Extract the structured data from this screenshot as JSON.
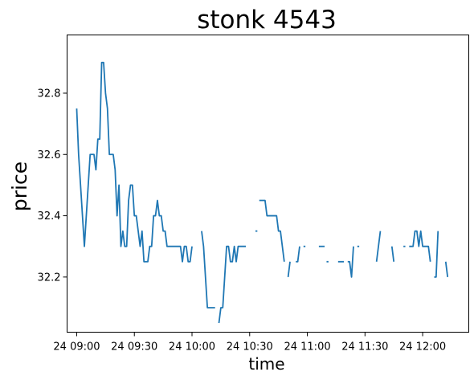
{
  "chart_data": {
    "type": "line",
    "title": "stonk 4543",
    "xlabel": "time",
    "ylabel": "price",
    "x_unit": "minutes after 24 09:00",
    "xlim": [
      -5,
      204
    ],
    "ylim": [
      32.02,
      32.99
    ],
    "grid": false,
    "legend": "none",
    "line_color": "#1f77b4",
    "xticks": [
      {
        "value": 0,
        "label": "24 09:00"
      },
      {
        "value": 30,
        "label": "24 09:30"
      },
      {
        "value": 60,
        "label": "24 10:00"
      },
      {
        "value": 90,
        "label": "24 10:30"
      },
      {
        "value": 120,
        "label": "24 11:00"
      },
      {
        "value": 150,
        "label": "24 11:30"
      },
      {
        "value": 180,
        "label": "24 12:00"
      }
    ],
    "yticks": [
      {
        "value": 32.2,
        "label": "32.2"
      },
      {
        "value": 32.4,
        "label": "32.4"
      },
      {
        "value": 32.6,
        "label": "32.6"
      },
      {
        "value": 32.8,
        "label": "32.8"
      }
    ],
    "series": [
      {
        "segments": [
          [
            [
              0,
              32.75
            ],
            [
              1,
              32.6
            ],
            [
              2,
              32.5
            ],
            [
              3,
              32.4
            ],
            [
              4,
              32.3
            ],
            [
              5,
              32.4
            ],
            [
              6,
              32.5
            ],
            [
              7,
              32.6
            ],
            [
              8,
              32.6
            ],
            [
              9,
              32.6
            ],
            [
              10,
              32.55
            ],
            [
              11,
              32.65
            ],
            [
              12,
              32.65
            ],
            [
              13,
              32.9
            ],
            [
              14,
              32.9
            ],
            [
              15,
              32.8
            ],
            [
              16,
              32.75
            ],
            [
              17,
              32.6
            ],
            [
              18,
              32.6
            ],
            [
              19,
              32.6
            ],
            [
              20,
              32.55
            ],
            [
              21,
              32.4
            ],
            [
              22,
              32.5
            ],
            [
              23,
              32.3
            ],
            [
              24,
              32.35
            ],
            [
              25,
              32.3
            ],
            [
              26,
              32.3
            ],
            [
              27,
              32.45
            ],
            [
              28,
              32.5
            ],
            [
              29,
              32.5
            ],
            [
              30,
              32.4
            ],
            [
              31,
              32.4
            ],
            [
              32,
              32.35
            ],
            [
              33,
              32.3
            ],
            [
              34,
              32.35
            ],
            [
              35,
              32.25
            ],
            [
              36,
              32.25
            ],
            [
              37,
              32.25
            ],
            [
              38,
              32.3
            ],
            [
              39,
              32.3
            ],
            [
              40,
              32.4
            ],
            [
              41,
              32.4
            ],
            [
              42,
              32.45
            ],
            [
              43,
              32.4
            ],
            [
              44,
              32.4
            ],
            [
              45,
              32.35
            ],
            [
              46,
              32.35
            ],
            [
              47,
              32.3
            ],
            [
              48,
              32.3
            ],
            [
              49,
              32.3
            ],
            [
              50,
              32.3
            ],
            [
              51,
              32.3
            ],
            [
              52,
              32.3
            ],
            [
              53,
              32.3
            ],
            [
              54,
              32.3
            ],
            [
              55,
              32.25
            ],
            [
              56,
              32.3
            ],
            [
              57,
              32.3
            ],
            [
              58,
              32.25
            ],
            [
              59,
              32.25
            ],
            [
              60,
              32.3
            ]
          ],
          [
            [
              65,
              32.35
            ],
            [
              66,
              32.3
            ],
            [
              67,
              32.2
            ],
            [
              68,
              32.1
            ],
            [
              69,
              32.1
            ],
            [
              70,
              32.1
            ],
            [
              71,
              32.1
            ],
            [
              72,
              32.1
            ]
          ],
          [
            [
              74,
              32.05
            ],
            [
              75,
              32.1
            ],
            [
              76,
              32.1
            ],
            [
              77,
              32.2
            ],
            [
              78,
              32.3
            ],
            [
              79,
              32.3
            ],
            [
              80,
              32.25
            ],
            [
              81,
              32.25
            ],
            [
              82,
              32.3
            ],
            [
              83,
              32.25
            ],
            [
              84,
              32.3
            ],
            [
              85,
              32.3
            ],
            [
              86,
              32.3
            ],
            [
              87,
              32.3
            ],
            [
              88,
              32.3
            ]
          ],
          [
            [
              93,
              32.35
            ],
            [
              94,
              32.35
            ]
          ],
          [
            [
              95,
              32.45
            ],
            [
              96,
              32.45
            ],
            [
              97,
              32.45
            ],
            [
              98,
              32.45
            ],
            [
              99,
              32.4
            ],
            [
              100,
              32.4
            ],
            [
              101,
              32.4
            ],
            [
              102,
              32.4
            ],
            [
              103,
              32.4
            ],
            [
              104,
              32.4
            ],
            [
              105,
              32.35
            ],
            [
              106,
              32.35
            ],
            [
              107,
              32.3
            ],
            [
              108,
              32.25
            ]
          ],
          [
            [
              110,
              32.2
            ],
            [
              111,
              32.25
            ]
          ],
          [
            [
              114,
              32.25
            ],
            [
              115,
              32.25
            ],
            [
              116,
              32.3
            ]
          ],
          [
            [
              118,
              32.3
            ],
            [
              119,
              32.3
            ]
          ],
          [
            [
              126,
              32.3
            ],
            [
              127,
              32.3
            ],
            [
              128,
              32.3
            ],
            [
              129,
              32.3
            ]
          ],
          [
            [
              130,
              32.25
            ],
            [
              131,
              32.25
            ]
          ],
          [
            [
              136,
              32.25
            ],
            [
              137,
              32.25
            ],
            [
              138,
              32.25
            ],
            [
              139,
              32.25
            ]
          ],
          [
            [
              141,
              32.25
            ],
            [
              142,
              32.25
            ],
            [
              143,
              32.2
            ],
            [
              144,
              32.3
            ]
          ],
          [
            [
              146,
              32.3
            ],
            [
              147,
              32.3
            ]
          ],
          [
            [
              156,
              32.25
            ],
            [
              157,
              32.3
            ],
            [
              158,
              32.35
            ]
          ],
          [
            [
              164,
              32.3
            ],
            [
              165,
              32.25
            ]
          ],
          [
            [
              170,
              32.3
            ],
            [
              171,
              32.3
            ]
          ],
          [
            [
              173,
              32.3
            ],
            [
              174,
              32.3
            ],
            [
              175,
              32.3
            ],
            [
              176,
              32.35
            ],
            [
              177,
              32.35
            ],
            [
              178,
              32.3
            ],
            [
              179,
              32.35
            ],
            [
              180,
              32.3
            ],
            [
              181,
              32.3
            ],
            [
              182,
              32.3
            ],
            [
              183,
              32.3
            ],
            [
              184,
              32.25
            ]
          ],
          [
            [
              186,
              32.2
            ],
            [
              187,
              32.2
            ],
            [
              188,
              32.35
            ]
          ],
          [
            [
              192,
              32.25
            ],
            [
              193,
              32.2
            ]
          ]
        ]
      }
    ]
  }
}
